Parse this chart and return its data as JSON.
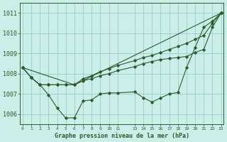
{
  "title": "Graphe pression niveau de la mer (hPa)",
  "bg_color": "#cceee8",
  "grid_color": "#99cccc",
  "line_color": "#2d5a2d",
  "ylim": [
    1005.5,
    1011.5
  ],
  "yticks": [
    1006,
    1007,
    1008,
    1009,
    1010,
    1011
  ],
  "xlim": [
    -0.3,
    23.3
  ],
  "x_hours": [
    0,
    1,
    2,
    3,
    4,
    5,
    6,
    7,
    8,
    9,
    10,
    11,
    13,
    14,
    15,
    16,
    17,
    18,
    19,
    20,
    21,
    22,
    23
  ],
  "series": [
    {
      "x": [
        0,
        1,
        2,
        3,
        4,
        5,
        6,
        7,
        8,
        9,
        10,
        11,
        13,
        14,
        15,
        16,
        17,
        18,
        19,
        20,
        21,
        22,
        23
      ],
      "y": [
        1008.3,
        1007.8,
        1007.45,
        1006.95,
        1006.3,
        1005.8,
        1005.82,
        1006.65,
        1006.7,
        1007.0,
        1007.05,
        1007.05,
        1007.1,
        1006.8,
        1006.6,
        1006.8,
        1007.0,
        1007.07,
        1008.3,
        1009.3,
        1010.3,
        1010.6,
        1011.0
      ],
      "has_markers": true
    },
    {
      "x": [
        0,
        1,
        2,
        3,
        4,
        5,
        6,
        7,
        8,
        9,
        10,
        11,
        13,
        14,
        15,
        16,
        17,
        18,
        19,
        20,
        21,
        22,
        23
      ],
      "y": [
        1008.3,
        1007.8,
        1007.45,
        1007.45,
        1007.45,
        1007.45,
        1007.45,
        1007.65,
        1007.75,
        1007.9,
        1008.0,
        1008.15,
        1008.35,
        1008.5,
        1008.6,
        1008.7,
        1008.75,
        1008.8,
        1008.85,
        1009.05,
        1009.2,
        1010.3,
        1011.0
      ],
      "has_markers": true
    },
    {
      "x": [
        0,
        1,
        2,
        3,
        4,
        5,
        6,
        7,
        8,
        9,
        10,
        11,
        13,
        14,
        15,
        16,
        17,
        18,
        19,
        20,
        21,
        22,
        23
      ],
      "y": [
        1008.3,
        1007.8,
        1007.45,
        1007.45,
        1007.45,
        1007.45,
        1007.45,
        1007.75,
        1007.9,
        1008.1,
        1008.25,
        1008.4,
        1008.65,
        1008.8,
        1008.9,
        1009.05,
        1009.2,
        1009.35,
        1009.5,
        1009.7,
        1009.9,
        1010.5,
        1011.0
      ],
      "has_markers": true
    },
    {
      "x": [
        0,
        6,
        23
      ],
      "y": [
        1008.3,
        1007.45,
        1011.0
      ],
      "has_markers": false
    }
  ]
}
